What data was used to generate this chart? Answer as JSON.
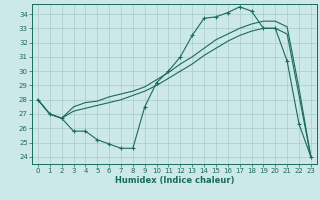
{
  "xlabel": "Humidex (Indice chaleur)",
  "bg_color": "#cce8e8",
  "grid_color": "#aacccc",
  "line_color": "#1a6b5a",
  "xlim": [
    -0.5,
    23.5
  ],
  "ylim": [
    23.5,
    34.7
  ],
  "xticks": [
    0,
    1,
    2,
    3,
    4,
    5,
    6,
    7,
    8,
    9,
    10,
    11,
    12,
    13,
    14,
    15,
    16,
    17,
    18,
    19,
    20,
    21,
    22,
    23
  ],
  "yticks": [
    24,
    25,
    26,
    27,
    28,
    29,
    30,
    31,
    32,
    33,
    34
  ],
  "line1_x": [
    0,
    1,
    2,
    3,
    4,
    5,
    6,
    7,
    8,
    9,
    10,
    11,
    12,
    13,
    14,
    15,
    16,
    17,
    18,
    19,
    20,
    21,
    22,
    23
  ],
  "line1_y": [
    28.0,
    27.0,
    26.7,
    25.8,
    25.8,
    25.2,
    24.9,
    24.6,
    24.6,
    27.5,
    29.2,
    30.0,
    31.0,
    32.5,
    33.7,
    33.8,
    34.1,
    34.5,
    34.2,
    33.0,
    33.0,
    30.7,
    26.3,
    24.0
  ],
  "line2_x": [
    0,
    1,
    2,
    3,
    4,
    5,
    6,
    7,
    8,
    9,
    10,
    11,
    12,
    13,
    14,
    15,
    16,
    17,
    18,
    19,
    20,
    21,
    22,
    23
  ],
  "line2_y": [
    28.0,
    27.0,
    26.7,
    27.5,
    27.8,
    27.9,
    28.2,
    28.4,
    28.6,
    28.9,
    29.4,
    29.9,
    30.5,
    31.0,
    31.6,
    32.2,
    32.6,
    33.0,
    33.3,
    33.5,
    33.5,
    33.1,
    28.8,
    24.0
  ],
  "line3_x": [
    0,
    1,
    2,
    3,
    4,
    5,
    6,
    7,
    8,
    9,
    10,
    11,
    12,
    13,
    14,
    15,
    16,
    17,
    18,
    19,
    20,
    21,
    22,
    23
  ],
  "line3_y": [
    28.0,
    27.0,
    26.7,
    27.2,
    27.4,
    27.6,
    27.8,
    28.0,
    28.3,
    28.6,
    29.0,
    29.5,
    30.0,
    30.5,
    31.1,
    31.6,
    32.1,
    32.5,
    32.8,
    33.0,
    33.0,
    32.6,
    28.3,
    24.0
  ]
}
